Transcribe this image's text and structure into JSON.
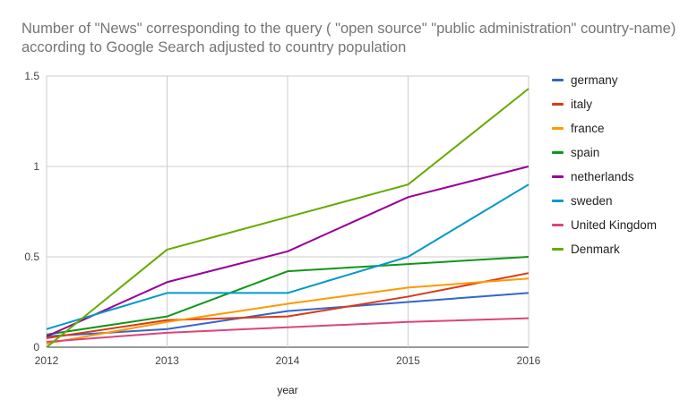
{
  "chart_data": {
    "type": "line",
    "title_lines": [
      "Number of \"News\" corresponding to the query ( \"open source\" \"public administration\"  country-name)",
      "according to Google Search adjusted to country population"
    ],
    "xlabel": "year",
    "ylabel": "",
    "x": [
      2012,
      2013,
      2014,
      2015,
      2016
    ],
    "x_ticks": [
      "2012",
      "2013",
      "2014",
      "2015",
      "2016"
    ],
    "ylim": [
      0,
      1.5
    ],
    "y_ticks": [
      "0",
      "0.5",
      "1",
      "1.5"
    ],
    "grid": true,
    "legend_position": "right",
    "series": [
      {
        "name": "germany",
        "color": "#3366cc",
        "values": [
          0.06,
          0.1,
          0.2,
          0.25,
          0.3
        ]
      },
      {
        "name": "italy",
        "color": "#dc3912",
        "values": [
          0.05,
          0.15,
          0.17,
          0.28,
          0.41
        ]
      },
      {
        "name": "france",
        "color": "#ff9900",
        "values": [
          0.02,
          0.14,
          0.24,
          0.33,
          0.38
        ]
      },
      {
        "name": "spain",
        "color": "#109618",
        "values": [
          0.07,
          0.17,
          0.42,
          0.46,
          0.5
        ]
      },
      {
        "name": "netherlands",
        "color": "#990099",
        "values": [
          0.06,
          0.36,
          0.53,
          0.83,
          1.0
        ]
      },
      {
        "name": "sweden",
        "color": "#0099c6",
        "values": [
          0.1,
          0.3,
          0.3,
          0.5,
          0.9
        ]
      },
      {
        "name": "United Kingdom",
        "color": "#dd4477",
        "values": [
          0.03,
          0.08,
          0.11,
          0.14,
          0.16
        ]
      },
      {
        "name": "Denmark",
        "color": "#66aa00",
        "values": [
          0.0,
          0.54,
          0.72,
          0.9,
          1.43
        ]
      }
    ]
  }
}
